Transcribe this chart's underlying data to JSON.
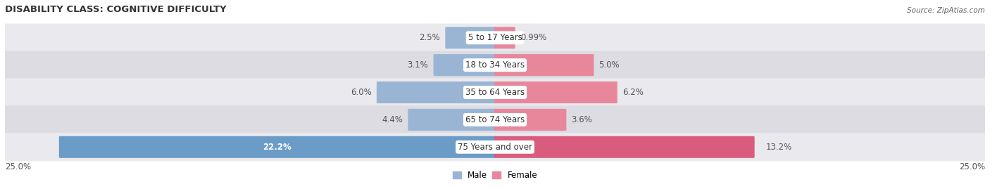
{
  "title": "DISABILITY CLASS: COGNITIVE DIFFICULTY",
  "source": "Source: ZipAtlas.com",
  "categories": [
    "5 to 17 Years",
    "18 to 34 Years",
    "35 to 64 Years",
    "65 to 74 Years",
    "75 Years and over"
  ],
  "male_values": [
    2.5,
    3.1,
    6.0,
    4.4,
    22.2
  ],
  "female_values": [
    0.99,
    5.0,
    6.2,
    3.6,
    13.2
  ],
  "male_labels": [
    "2.5%",
    "3.1%",
    "6.0%",
    "4.4%",
    "22.2%"
  ],
  "female_labels": [
    "0.99%",
    "5.0%",
    "6.2%",
    "3.6%",
    "13.2%"
  ],
  "male_color": "#9ab5d4",
  "female_color": "#e8879c",
  "male_color_last": "#6b9cc8",
  "female_color_last": "#d95c7e",
  "bg_colors": [
    "#eaeaee",
    "#dcdce2",
    "#eaeaee",
    "#dcdce2",
    "#eaeaee"
  ],
  "max_val": 25.0,
  "axis_label_left": "25.0%",
  "axis_label_right": "25.0%",
  "legend_male": "Male",
  "legend_female": "Female",
  "title_fontsize": 9.5,
  "label_fontsize": 8.5,
  "category_fontsize": 8.5
}
